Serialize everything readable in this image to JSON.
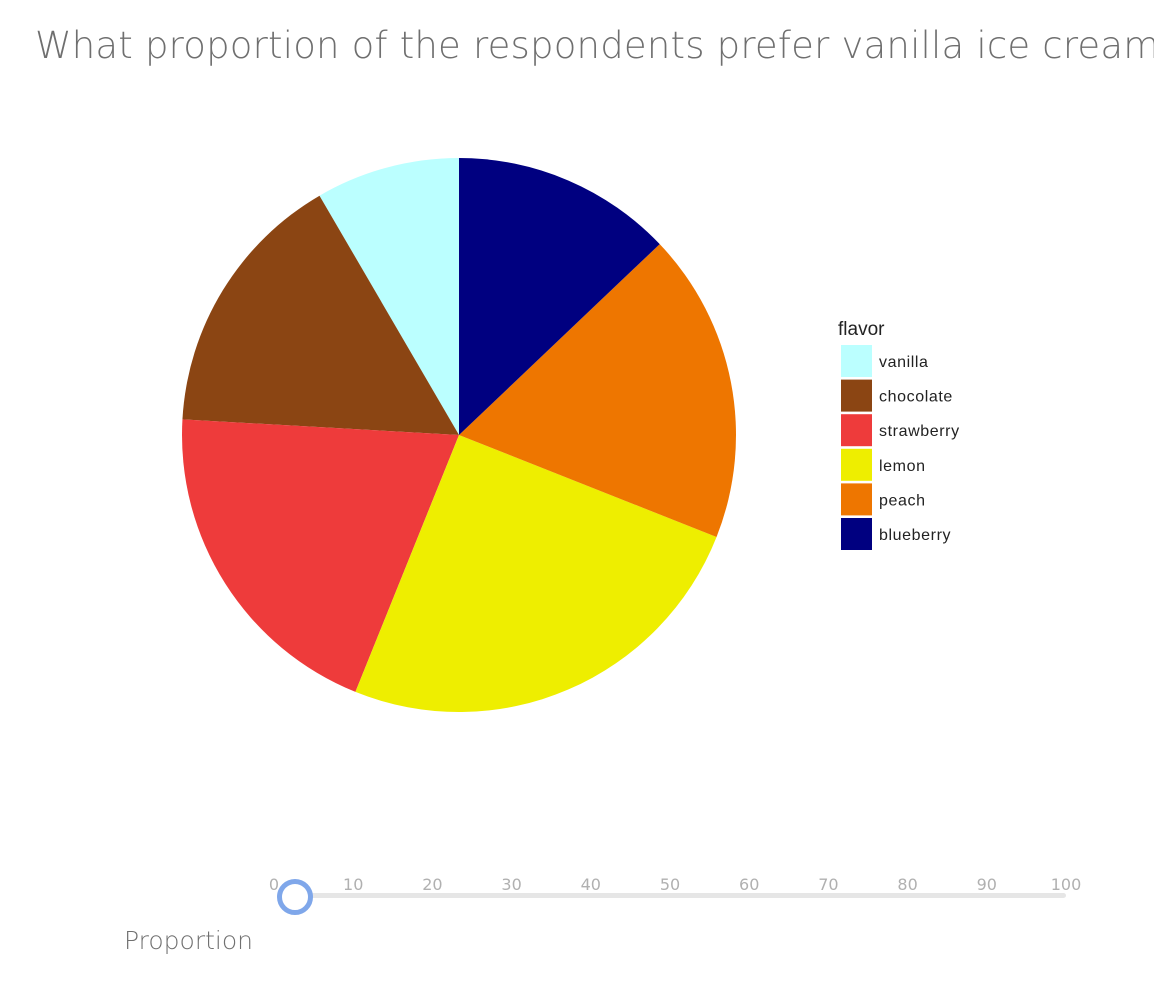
{
  "question": "What proportion of the respondents prefer vanilla ice cream?",
  "chart_data": {
    "type": "pie",
    "legend_title": "flavor",
    "legend_placement": "right",
    "start_angle": "12 o'clock, counter-clockwise",
    "slices": [
      {
        "label": "vanilla",
        "value": 8.4,
        "color": "#bbffff"
      },
      {
        "label": "chocolate",
        "value": 15.7,
        "color": "#8b4513"
      },
      {
        "label": "strawberry",
        "value": 19.8,
        "color": "#ee3b3b"
      },
      {
        "label": "lemon",
        "value": 25.1,
        "color": "#eeee00"
      },
      {
        "label": "peach",
        "value": 18.1,
        "color": "#ee7600"
      },
      {
        "label": "blueberry",
        "value": 12.9,
        "color": "#000080"
      }
    ]
  },
  "slider": {
    "axis_label": "Proportion",
    "min": 0,
    "max": 100,
    "value": 2,
    "ticks": [
      "0",
      "10",
      "20",
      "30",
      "40",
      "50",
      "60",
      "70",
      "80",
      "90",
      "100"
    ],
    "track_color": "#e6e6e6",
    "thumb_color": "#7fa7ea"
  }
}
